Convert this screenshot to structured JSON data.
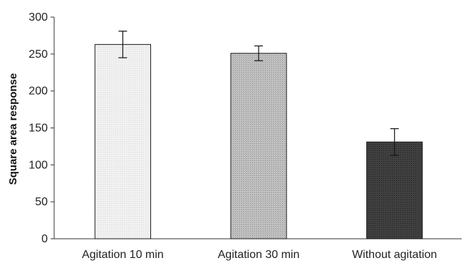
{
  "chart_data": {
    "type": "bar",
    "title": "",
    "xlabel": "",
    "ylabel": "Square area response",
    "ylim": [
      0,
      300
    ],
    "yticks": [
      0,
      50,
      100,
      150,
      200,
      250,
      300
    ],
    "grid": false,
    "legend": "none",
    "categories": [
      "Agitation 10 min",
      "Agitation 30 min",
      "Without agitation"
    ],
    "values": [
      263,
      251,
      131
    ],
    "error_low": [
      245,
      241,
      113
    ],
    "error_high": [
      281,
      261,
      149
    ],
    "bar_fills": [
      "#efefef",
      "#b8b8b8",
      "#3a3a3a"
    ],
    "bar_textures": [
      "fine-dots",
      "medium-dots",
      "dark-dots"
    ]
  }
}
